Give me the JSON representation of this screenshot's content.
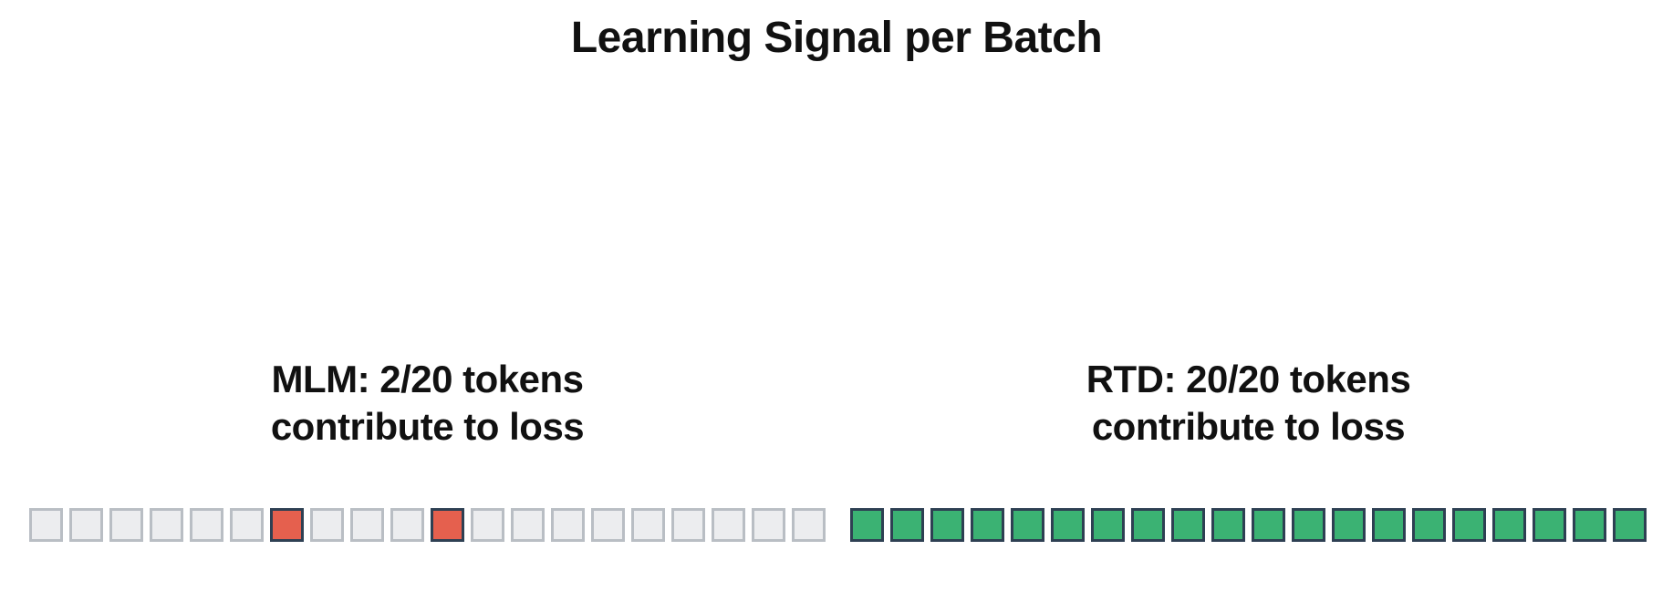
{
  "figure": {
    "title": "Learning Signal per Batch"
  },
  "colors": {
    "background": "#ffffff",
    "text": "#111111",
    "inactive_fill": "#ecedef",
    "inactive_border": "#b9bec4",
    "active_border": "#2e4053",
    "mlm_active_fill": "#e5604e",
    "rtd_active_fill": "#3bb273"
  },
  "chart_data": {
    "type": "heatmap",
    "title": "Learning Signal per Batch",
    "legend_position": "none",
    "grid": false,
    "groups": [
      {
        "name": "MLM",
        "label_line1": "MLM: 2/20 tokens",
        "label_line2": "contribute to loss",
        "tokens_total": 20,
        "tokens_contributing": 2,
        "contributing_positions": [
          7,
          11
        ],
        "cells": [
          0,
          0,
          0,
          0,
          0,
          0,
          1,
          0,
          0,
          0,
          1,
          0,
          0,
          0,
          0,
          0,
          0,
          0,
          0,
          0
        ],
        "active_fill": "#e5604e",
        "inactive_fill": "#ecedef"
      },
      {
        "name": "RTD",
        "label_line1": "RTD: 20/20 tokens",
        "label_line2": "contribute to loss",
        "tokens_total": 20,
        "tokens_contributing": 20,
        "contributing_positions": [
          1,
          2,
          3,
          4,
          5,
          6,
          7,
          8,
          9,
          10,
          11,
          12,
          13,
          14,
          15,
          16,
          17,
          18,
          19,
          20
        ],
        "cells": [
          1,
          1,
          1,
          1,
          1,
          1,
          1,
          1,
          1,
          1,
          1,
          1,
          1,
          1,
          1,
          1,
          1,
          1,
          1,
          1
        ],
        "active_fill": "#3bb273",
        "inactive_fill": "#ecedef"
      }
    ]
  }
}
